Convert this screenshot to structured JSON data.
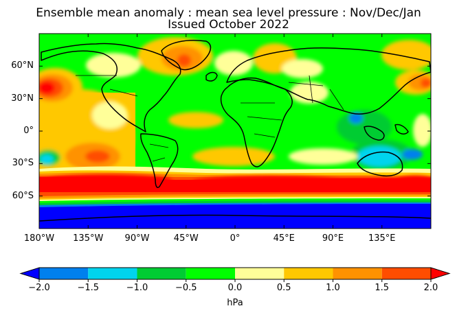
{
  "title_line1": "Ensemble mean anomaly : mean sea level pressure : Nov/Dec/Jan",
  "title_line2": "Issued October 2022",
  "map": {
    "projection": "equirectangular",
    "lon_range": [
      -180,
      180
    ],
    "lat_range": [
      -90,
      90
    ],
    "coastlines": true,
    "country_borders": true
  },
  "lat_ticks": [
    {
      "lat": 60,
      "label": "60°N"
    },
    {
      "lat": 30,
      "label": "30°N"
    },
    {
      "lat": 0,
      "label": "0°"
    },
    {
      "lat": -30,
      "label": "30°S"
    },
    {
      "lat": -60,
      "label": "60°S"
    }
  ],
  "lon_ticks": [
    {
      "lon": -180,
      "label": "180°W"
    },
    {
      "lon": -135,
      "label": "135°W"
    },
    {
      "lon": -90,
      "label": "90°W"
    },
    {
      "lon": -45,
      "label": "45°W"
    },
    {
      "lon": 0,
      "label": "0°"
    },
    {
      "lon": 45,
      "label": "45°E"
    },
    {
      "lon": 90,
      "label": "90°E"
    },
    {
      "lon": 135,
      "label": "135°E"
    }
  ],
  "colorbar": {
    "unit": "hPa",
    "extend": "both",
    "under_color": "#0000ff",
    "over_color": "#ff0000",
    "levels": [
      -2.0,
      -1.5,
      -1.0,
      -0.5,
      0.0,
      0.5,
      1.0,
      1.5,
      2.0
    ],
    "tick_labels": [
      "−2.0",
      "−1.5",
      "−1.0",
      "−0.5",
      "0.0",
      "0.5",
      "1.0",
      "1.5",
      "2.0"
    ],
    "colors": [
      "#0080ee",
      "#00d4ee",
      "#00cc33",
      "#00ff00",
      "#ffff99",
      "#ffc800",
      "#ff9200",
      "#ff4d00"
    ]
  }
}
